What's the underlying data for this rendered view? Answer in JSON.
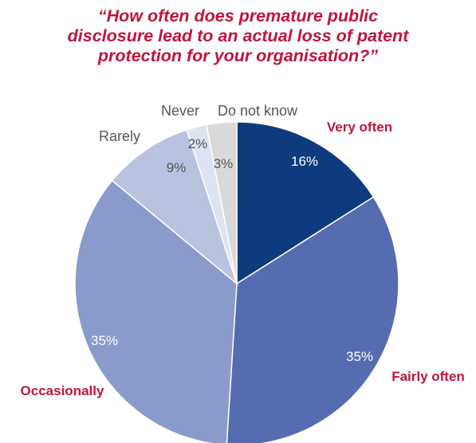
{
  "chart_data": {
    "type": "pie",
    "title_lines": [
      "“How often does premature public",
      "disclosure lead to an actual loss of patent",
      "protection for your organisation?”"
    ],
    "slices": [
      {
        "label": "Very often",
        "value": 16,
        "value_label": "16%",
        "color": "#0e3b7e",
        "label_color": "#c0143c",
        "label_bold": true
      },
      {
        "label": "Fairly often",
        "value": 35,
        "value_label": "35%",
        "color": "#556cb0",
        "label_color": "#c0143c",
        "label_bold": true
      },
      {
        "label": "Occasionally",
        "value": 35,
        "value_label": "35%",
        "color": "#8a9acb",
        "label_color": "#c0143c",
        "label_bold": true
      },
      {
        "label": "Rarely",
        "value": 9,
        "value_label": "9%",
        "color": "#b9c3e0",
        "label_color": "#555555",
        "label_bold": false
      },
      {
        "label": "Never",
        "value": 2,
        "value_label": "2%",
        "color": "#dde3f1",
        "label_color": "#555555",
        "label_bold": false
      },
      {
        "label": "Do not know",
        "value": 3,
        "value_label": "3%",
        "color": "#d9d9d9",
        "label_color": "#555555",
        "label_bold": false
      }
    ],
    "start_angle": "12 o'clock",
    "direction": "clockwise",
    "legend": "none"
  }
}
